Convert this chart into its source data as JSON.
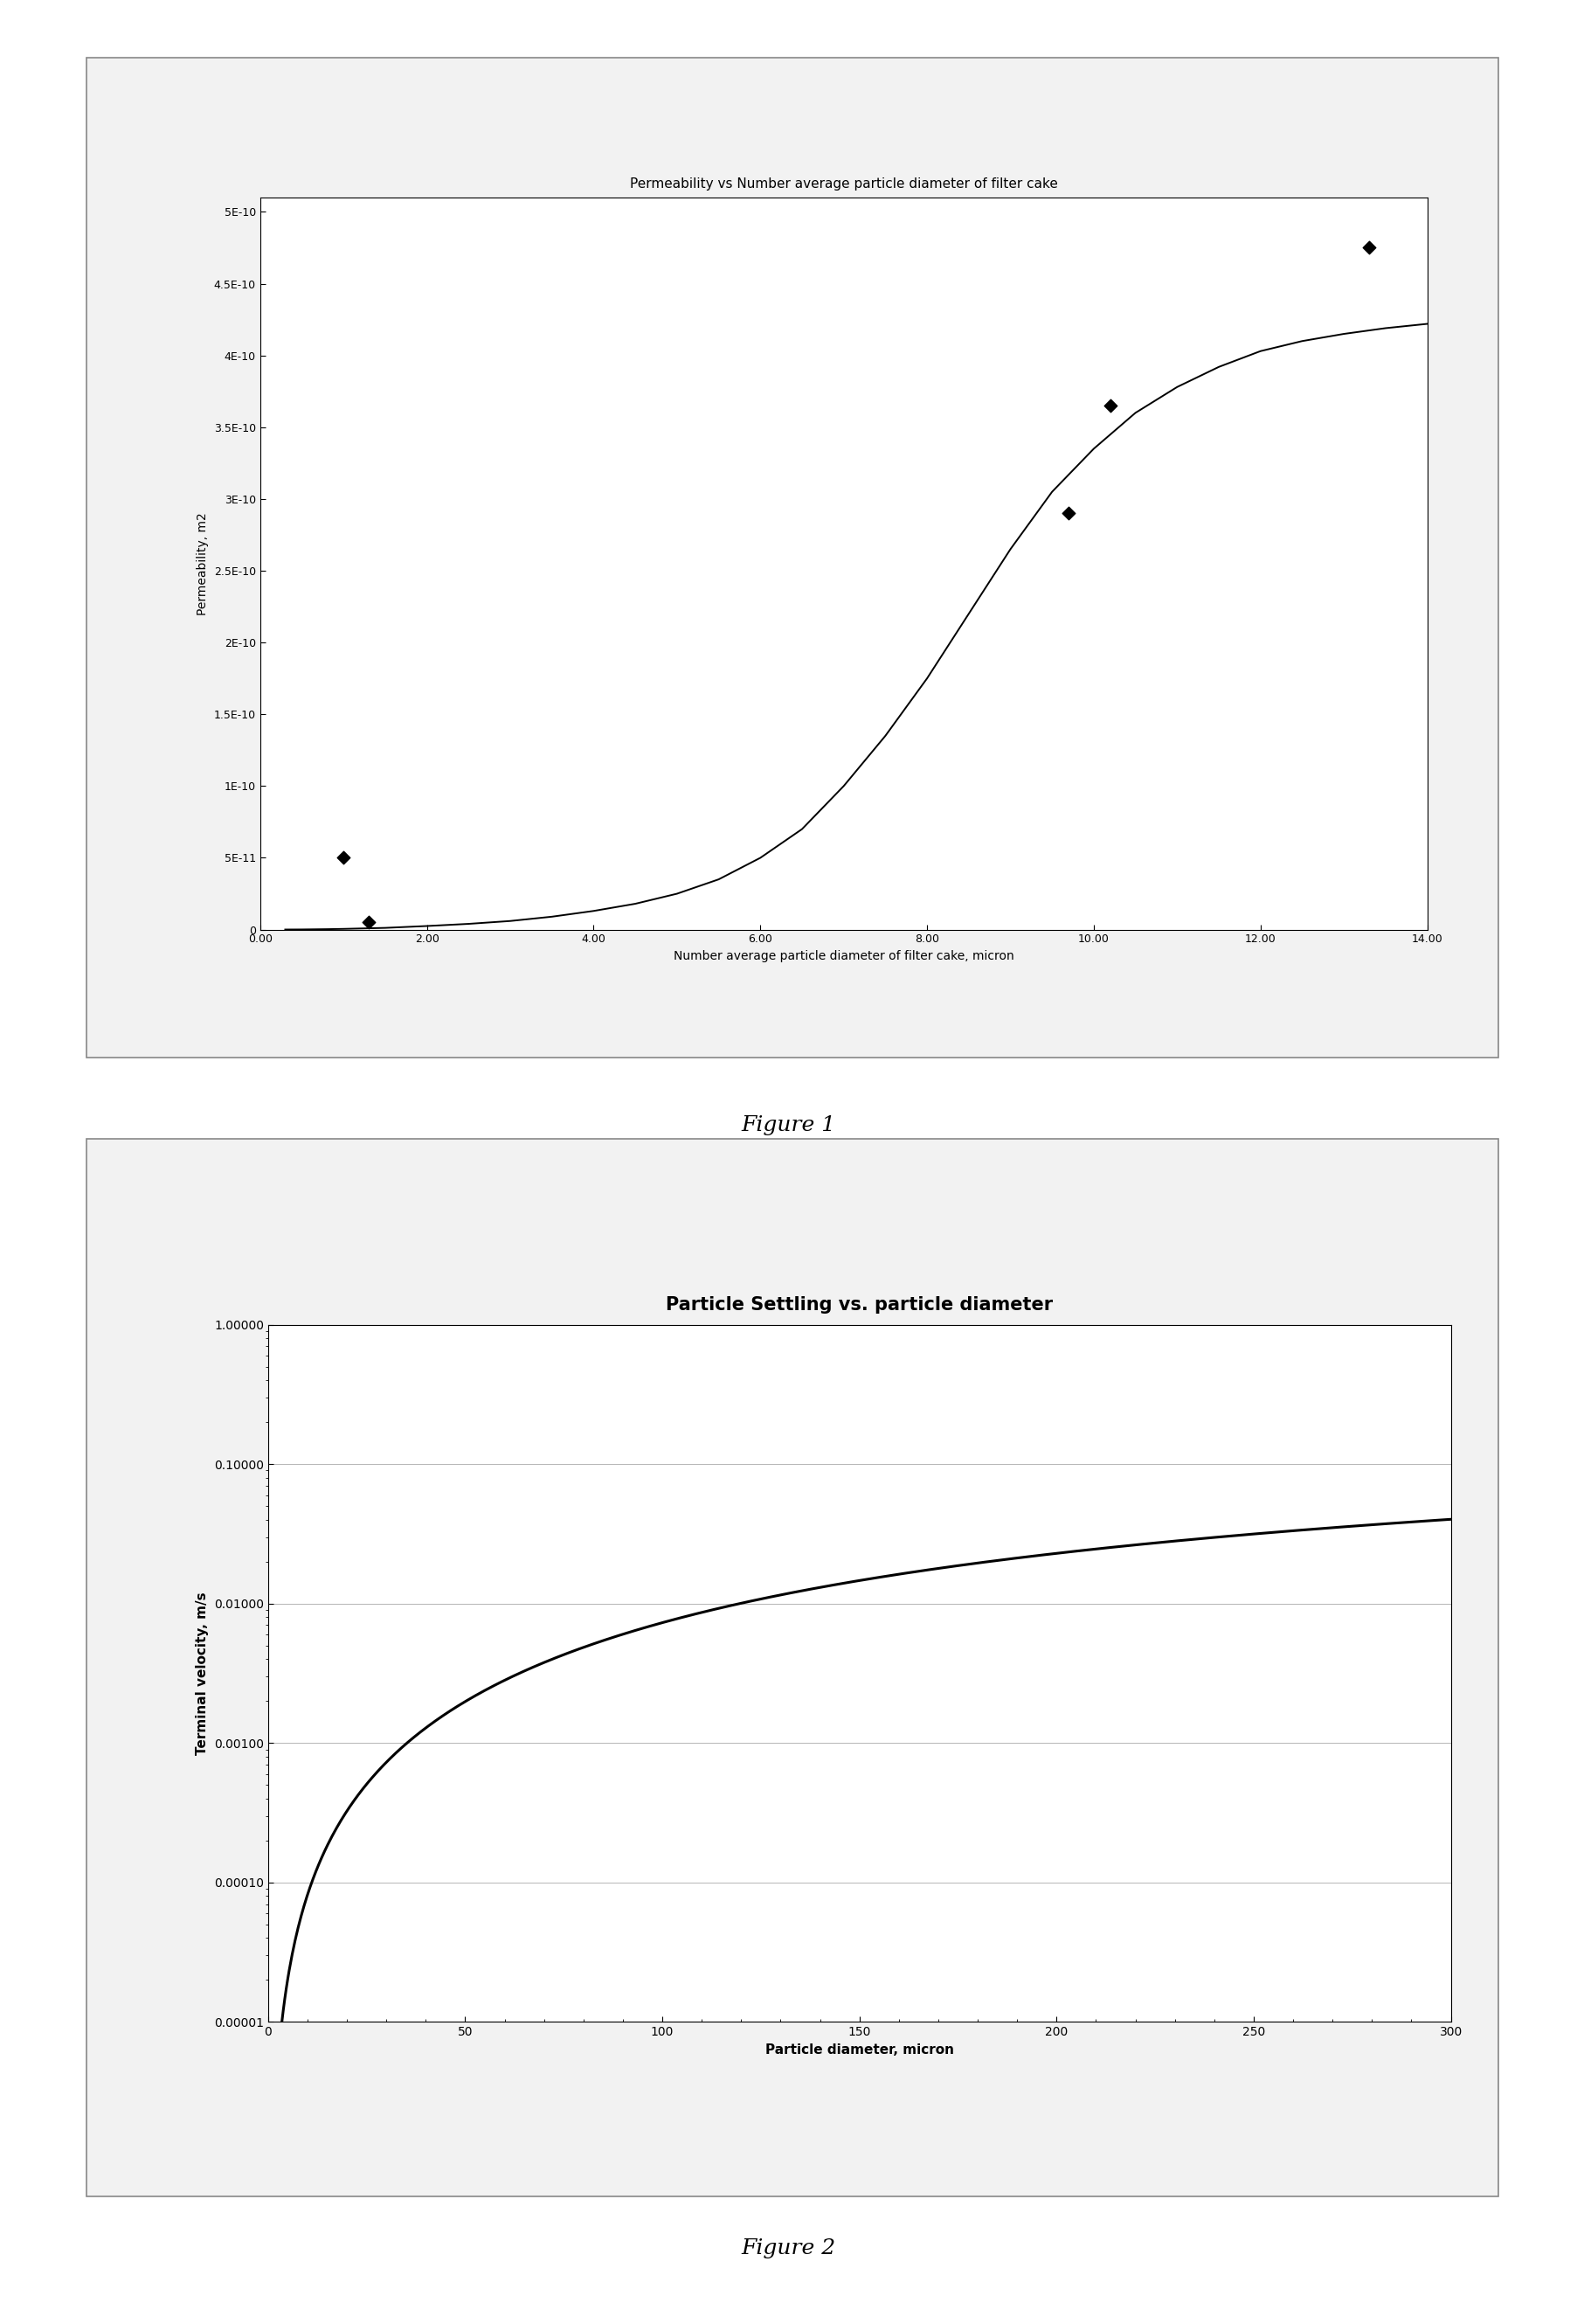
{
  "fig1": {
    "title": "Permeability vs Number average particle diameter of filter cake",
    "xlabel": "Number average particle diameter of filter cake, micron",
    "ylabel": "Permeability, m2",
    "xlim": [
      0.0,
      14.0
    ],
    "ylim": [
      0.0,
      5.1e-10
    ],
    "xticks": [
      0.0,
      2.0,
      4.0,
      6.0,
      8.0,
      10.0,
      12.0,
      14.0
    ],
    "xtick_labels": [
      "0.00",
      "2.00",
      "4.00",
      "6.00",
      "8.00",
      "10.00",
      "12.00",
      "14.00"
    ],
    "ytick_vals": [
      0,
      5e-11,
      1e-10,
      1.5e-10,
      2e-10,
      2.5e-10,
      3e-10,
      3.5e-10,
      4e-10,
      4.5e-10,
      5e-10
    ],
    "ytick_labels": [
      "0",
      "5E-11",
      "1E-10",
      "1.5E-10",
      "2E-10",
      "2.5E-10",
      "3E-10",
      "3.5E-10",
      "4E-10",
      "4.5E-10",
      "5E-10"
    ],
    "scatter_x": [
      1.0,
      1.3,
      9.7,
      10.2,
      13.3
    ],
    "scatter_y": [
      5e-11,
      5e-12,
      2.9e-10,
      3.65e-10,
      4.75e-10
    ],
    "curve_x": [
      0.3,
      0.5,
      0.8,
      1.0,
      1.5,
      2.0,
      2.5,
      3.0,
      3.5,
      4.0,
      4.5,
      5.0,
      5.5,
      6.0,
      6.5,
      7.0,
      7.5,
      8.0,
      8.5,
      9.0,
      9.5,
      10.0,
      10.5,
      11.0,
      11.5,
      12.0,
      12.5,
      13.0,
      13.5,
      14.0
    ],
    "curve_y": [
      5e-14,
      1e-13,
      3e-13,
      5e-13,
      1.2e-12,
      2.5e-12,
      4e-12,
      6e-12,
      9e-12,
      1.3e-11,
      1.8e-11,
      2.5e-11,
      3.5e-11,
      5e-11,
      7e-11,
      1e-10,
      1.35e-10,
      1.75e-10,
      2.2e-10,
      2.65e-10,
      3.05e-10,
      3.35e-10,
      3.6e-10,
      3.78e-10,
      3.92e-10,
      4.03e-10,
      4.1e-10,
      4.15e-10,
      4.19e-10,
      4.22e-10
    ],
    "figure_label": "Figure 1",
    "title_fontsize": 11,
    "label_fontsize": 10,
    "tick_fontsize": 9
  },
  "fig2": {
    "title": "Particle Settling vs. particle diameter",
    "xlabel": "Particle diameter, micron",
    "ylabel": "Terminal velocity, m/s",
    "xlim": [
      0,
      300
    ],
    "ylim_log": [
      1e-05,
      1.0
    ],
    "xticks": [
      0,
      50,
      100,
      150,
      200,
      250,
      300
    ],
    "xtick_labels": [
      "0",
      "50",
      "100",
      "150",
      "200",
      "250",
      "300"
    ],
    "ytick_vals": [
      1e-05,
      0.0001,
      0.001,
      0.01,
      0.1,
      1.0
    ],
    "ytick_labels": [
      "0.00001",
      "0.00010",
      "0.00100",
      "0.01000",
      "0.10000",
      "1.00000"
    ],
    "figure_label": "Figure 2",
    "title_fontsize": 15,
    "label_fontsize": 11,
    "tick_fontsize": 10
  },
  "page_bg": "#ffffff",
  "box_bg": "#f2f2f2",
  "plot_bg": "#ffffff",
  "box_edge_color": "#888888"
}
